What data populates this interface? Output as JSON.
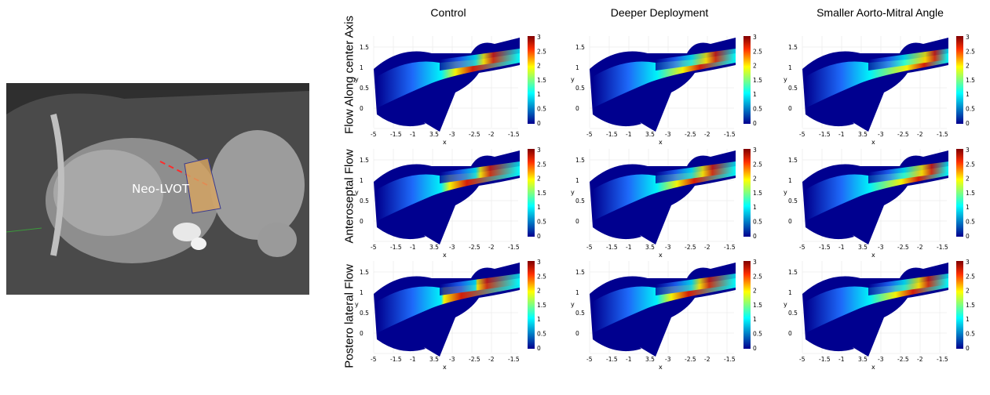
{
  "figure": {
    "column_titles": [
      "Control",
      "Deeper Deployment",
      "Smaller Aorto-Mitral Angle"
    ],
    "row_titles": [
      "Flow Along center Axis",
      "Anteroseptal Flow",
      "Postero lateral Flow"
    ],
    "ct_label": "Neo-LVOT"
  },
  "panel_axes": {
    "x_label": "x",
    "y_label": "y",
    "x_ticks": [
      "-5",
      "-1.5",
      "-1",
      "3.5",
      "-3",
      "-2.5",
      "-2",
      "-1.5"
    ],
    "y_ticks": [
      "1.5",
      "1",
      "0.5",
      "0"
    ],
    "colorbar_ticks": [
      "3",
      "2.5",
      "2",
      "1.5",
      "1",
      "0.5",
      "0"
    ]
  },
  "colors": {
    "jet_low": "#00008f",
    "jet_mid": "#00ffff",
    "jet_high": "#ffff00",
    "jet_max": "#800000",
    "lvot_overlay": "#d8a560",
    "dash_line": "#ff2a2a"
  }
}
